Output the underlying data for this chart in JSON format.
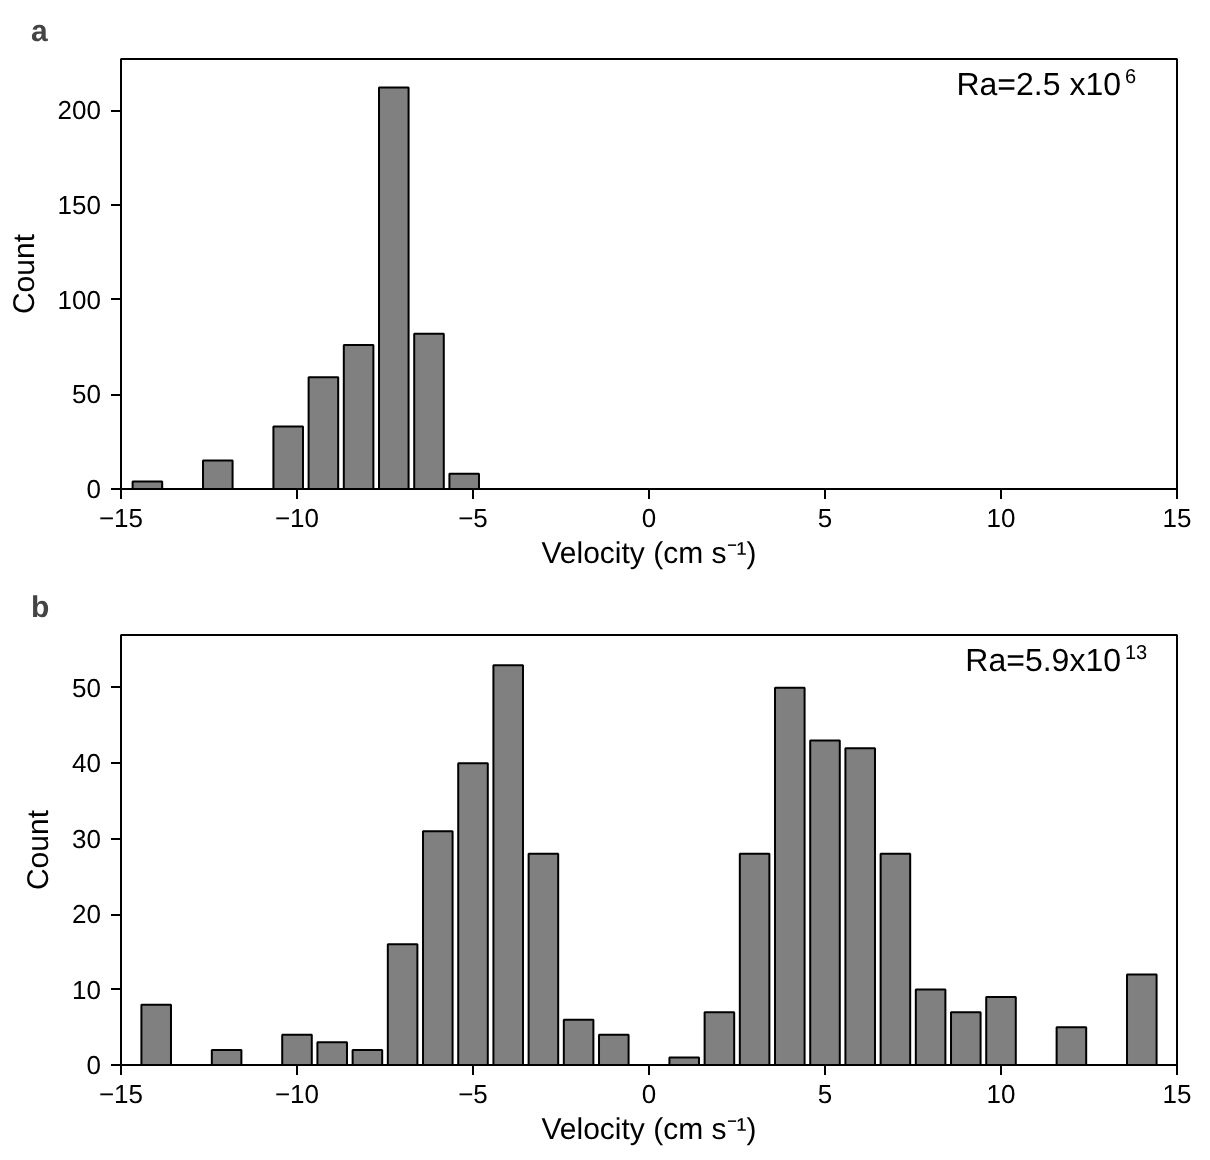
{
  "chart_data": [
    {
      "type": "histogram",
      "title": "a",
      "xlabel": "Velocity (cm s⁻¹)",
      "ylabel": "Count",
      "color": "#808080",
      "bins": [
        -14.75,
        -13.75,
        -12.75,
        -11.75,
        -10.75,
        -9.75,
        -8.75,
        -7.75,
        -6.75,
        -5.75,
        -4.75
      ],
      "values": [
        4,
        0,
        15,
        0,
        33,
        59,
        76,
        212,
        82,
        8
      ],
      "xlim": [
        -15,
        15
      ],
      "xticks": [
        -15,
        -10,
        -5,
        0,
        5,
        10,
        15
      ],
      "ylim": [
        0,
        227
      ],
      "yticks": [
        0,
        50,
        100,
        150,
        200
      ],
      "annotations": [
        "Ra=2.5 x10$^{6}$"
      ],
      "grid": false
    },
    {
      "type": "histogram",
      "title": "b",
      "xlabel": "Velocity (cm s⁻¹)",
      "ylabel": "Count",
      "color": "#808080",
      "bins": [
        -14.5,
        -13.5,
        -12.5,
        -11.5,
        -10.5,
        -9.5,
        -8.5,
        -7.5,
        -6.5,
        -5.5,
        -4.5,
        -3.5,
        -2.5,
        -1.5,
        -0.5,
        0.5,
        1.5,
        2.5,
        3.5,
        4.5,
        5.5,
        6.5,
        7.5,
        8.5,
        9.5,
        10.5,
        11.5,
        12.5,
        13.5,
        14.5
      ],
      "values": [
        8,
        0,
        2,
        0,
        4,
        3,
        2,
        16,
        31,
        40,
        53,
        28,
        6,
        4,
        0,
        1,
        7,
        28,
        50,
        43,
        42,
        28,
        10,
        7,
        9,
        0,
        5,
        0,
        12
      ],
      "xlim": [
        -15,
        15
      ],
      "xticks": [
        -15,
        -10,
        -5,
        0,
        5,
        10,
        15
      ],
      "ylim": [
        0,
        57
      ],
      "yticks": [
        0,
        10,
        20,
        30,
        40,
        50
      ],
      "annotations": [
        "Ra=5.9x10$^{13}$"
      ],
      "grid": false
    }
  ]
}
